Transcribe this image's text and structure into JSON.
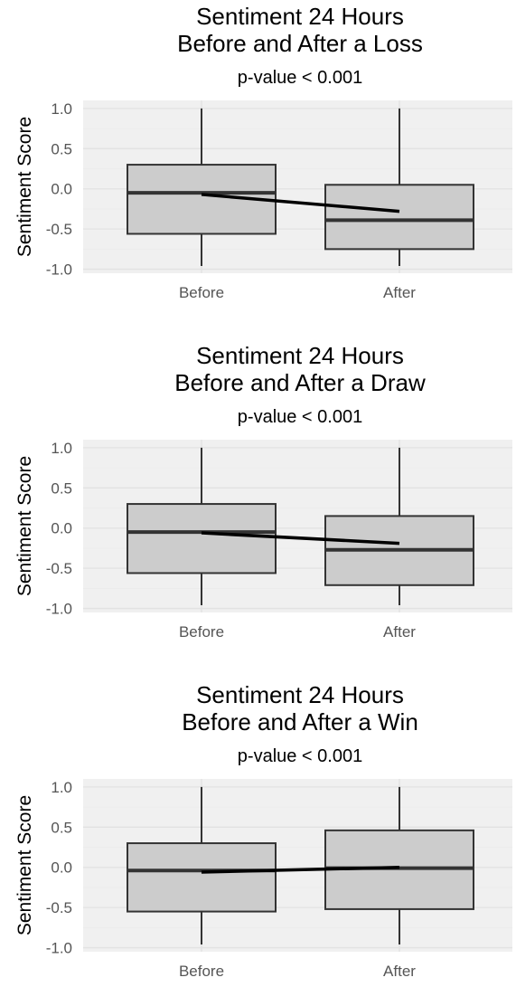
{
  "chart_data": [
    {
      "type": "box",
      "title": [
        "Sentiment 24 Hours",
        "Before and After a Loss"
      ],
      "subtitle": "p-value < 0.001",
      "xlabel": "",
      "ylabel": "Sentiment Score",
      "categories": [
        "Before",
        "After"
      ],
      "ylim": [
        -1.05,
        1.1
      ],
      "yticks": [
        1.0,
        0.5,
        0.0,
        -0.5,
        -1.0
      ],
      "ytick_labels": [
        "1.0",
        "0.5",
        "0.0",
        "-0.5",
        "-1.0"
      ],
      "boxes": [
        {
          "category": "Before",
          "whisker_low": -0.96,
          "q1": -0.56,
          "median": -0.05,
          "q3": 0.3,
          "whisker_high": 1.0
        },
        {
          "category": "After",
          "whisker_low": -0.96,
          "q1": -0.75,
          "median": -0.39,
          "q3": 0.05,
          "whisker_high": 1.0
        }
      ],
      "mean_line": [
        {
          "category": "Before",
          "value": -0.07
        },
        {
          "category": "After",
          "value": -0.28
        }
      ],
      "grid": true
    },
    {
      "type": "box",
      "title": [
        "Sentiment 24 Hours",
        "Before and After a Draw"
      ],
      "subtitle": "p-value < 0.001",
      "xlabel": "",
      "ylabel": "Sentiment Score",
      "categories": [
        "Before",
        "After"
      ],
      "ylim": [
        -1.05,
        1.1
      ],
      "yticks": [
        1.0,
        0.5,
        0.0,
        -0.5,
        -1.0
      ],
      "ytick_labels": [
        "1.0",
        "0.5",
        "0.0",
        "-0.5",
        "-1.0"
      ],
      "boxes": [
        {
          "category": "Before",
          "whisker_low": -0.96,
          "q1": -0.56,
          "median": -0.05,
          "q3": 0.3,
          "whisker_high": 1.0
        },
        {
          "category": "After",
          "whisker_low": -0.96,
          "q1": -0.71,
          "median": -0.27,
          "q3": 0.15,
          "whisker_high": 1.0
        }
      ],
      "mean_line": [
        {
          "category": "Before",
          "value": -0.06
        },
        {
          "category": "After",
          "value": -0.19
        }
      ],
      "grid": true
    },
    {
      "type": "box",
      "title": [
        "Sentiment 24 Hours",
        "Before and After a Win"
      ],
      "subtitle": "p-value < 0.001",
      "xlabel": "",
      "ylabel": "Sentiment Score",
      "categories": [
        "Before",
        "After"
      ],
      "ylim": [
        -1.05,
        1.1
      ],
      "yticks": [
        1.0,
        0.5,
        0.0,
        -0.5,
        -1.0
      ],
      "ytick_labels": [
        "1.0",
        "0.5",
        "0.0",
        "-0.5",
        "-1.0"
      ],
      "boxes": [
        {
          "category": "Before",
          "whisker_low": -0.96,
          "q1": -0.55,
          "median": -0.04,
          "q3": 0.3,
          "whisker_high": 1.0
        },
        {
          "category": "After",
          "whisker_low": -0.96,
          "q1": -0.52,
          "median": -0.01,
          "q3": 0.46,
          "whisker_high": 1.0
        }
      ],
      "mean_line": [
        {
          "category": "Before",
          "value": -0.06
        },
        {
          "category": "After",
          "value": 0.0
        }
      ],
      "grid": true
    }
  ],
  "colors": {
    "panel_background": "#f0f0f0",
    "grid_line": "#e4e4e4",
    "box_fill": "#cccccc",
    "box_stroke": "#333333",
    "whisker": "#333333",
    "median": "#333333",
    "mean_line": "#000000",
    "tick_label": "#555555",
    "axis_title": "#000000"
  }
}
